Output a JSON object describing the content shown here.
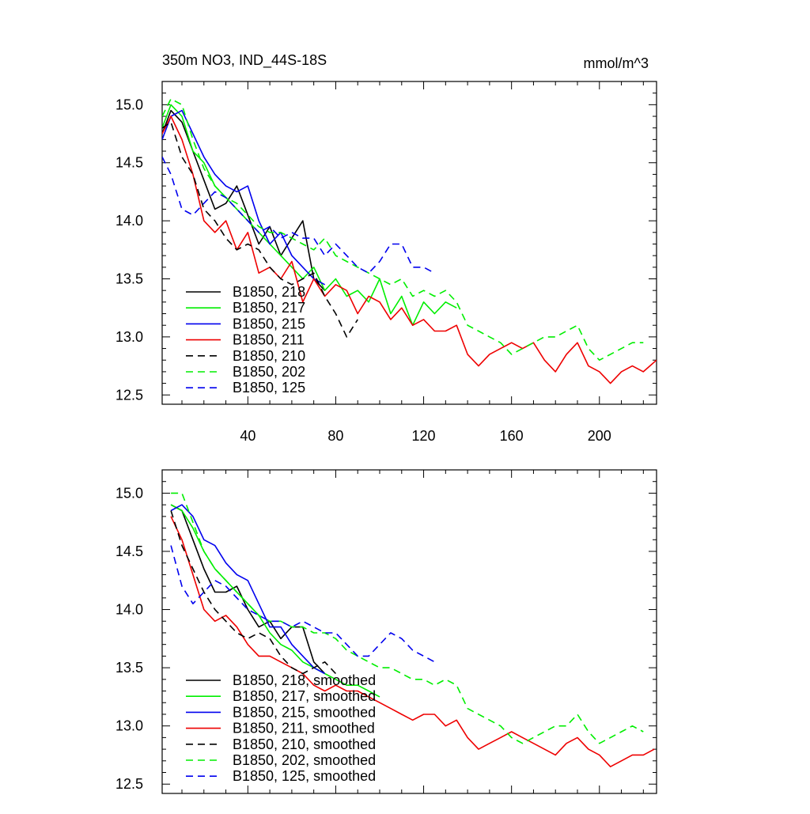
{
  "chart_data": [
    {
      "type": "line",
      "title": "350m NO3, IND_44S-18S",
      "units": "mmol/m^3",
      "xlabel": "",
      "ylabel": "",
      "xlim": [
        1,
        226
      ],
      "ylim": [
        12.42,
        15.2
      ],
      "x_ticks": [
        40,
        80,
        120,
        160,
        200
      ],
      "x_tick_labels": [
        "40",
        "80",
        "120",
        "160",
        "200"
      ],
      "y_ticks": [
        12.5,
        13.0,
        13.5,
        14.0,
        14.5,
        15.0
      ],
      "y_tick_labels": [
        "12.5",
        "13.0",
        "13.5",
        "14.0",
        "14.5",
        "15.0"
      ],
      "grid": false,
      "legend_position": "bottom-left, inside plot",
      "series": [
        {
          "name": "B1850, 218",
          "color": "#000000",
          "dash": "solid",
          "x": [
            1,
            5,
            10,
            15,
            20,
            25,
            30,
            35,
            40,
            45,
            50,
            55,
            60,
            65,
            70,
            75
          ],
          "y": [
            14.75,
            14.95,
            14.85,
            14.6,
            14.35,
            14.1,
            14.15,
            14.3,
            14.05,
            13.8,
            13.95,
            13.7,
            13.85,
            14.0,
            13.5,
            13.4
          ]
        },
        {
          "name": "B1850, 217",
          "color": "#00ee00",
          "dash": "solid",
          "x": [
            1,
            5,
            10,
            15,
            20,
            25,
            30,
            35,
            40,
            45,
            50,
            55,
            60,
            65,
            70,
            75,
            80,
            85,
            90,
            95,
            100,
            105,
            110,
            115,
            120,
            125,
            130,
            135
          ],
          "y": [
            14.8,
            15.0,
            14.9,
            14.6,
            14.5,
            14.3,
            14.2,
            14.1,
            14.0,
            13.9,
            13.8,
            13.7,
            13.6,
            13.5,
            13.6,
            13.4,
            13.5,
            13.35,
            13.4,
            13.3,
            13.5,
            13.2,
            13.35,
            13.1,
            13.3,
            13.2,
            13.3,
            13.25
          ]
        },
        {
          "name": "B1850, 215",
          "color": "#0000ee",
          "dash": "solid",
          "x": [
            1,
            5,
            10,
            15,
            20,
            25,
            30,
            35,
            40,
            45,
            50,
            55,
            60,
            65,
            70,
            75
          ],
          "y": [
            14.7,
            14.9,
            14.95,
            14.75,
            14.55,
            14.4,
            14.3,
            14.25,
            14.3,
            14.0,
            13.8,
            13.9,
            13.7,
            13.6,
            13.5,
            13.45
          ]
        },
        {
          "name": "B1850, 211",
          "color": "#ee0000",
          "dash": "solid",
          "x": [
            1,
            5,
            10,
            15,
            20,
            25,
            30,
            35,
            40,
            45,
            50,
            55,
            60,
            65,
            70,
            75,
            80,
            85,
            90,
            95,
            100,
            105,
            110,
            115,
            120,
            125,
            130,
            135,
            140,
            145,
            150,
            155,
            160,
            165,
            170,
            175,
            180,
            185,
            190,
            195,
            200,
            205,
            210,
            215,
            220,
            226
          ],
          "y": [
            14.75,
            14.9,
            14.7,
            14.4,
            14.0,
            13.9,
            14.0,
            13.75,
            13.9,
            13.55,
            13.6,
            13.5,
            13.65,
            13.3,
            13.5,
            13.35,
            13.45,
            13.4,
            13.2,
            13.35,
            13.3,
            13.15,
            13.25,
            13.1,
            13.15,
            13.05,
            13.05,
            13.1,
            12.85,
            12.75,
            12.85,
            12.9,
            12.95,
            12.9,
            12.95,
            12.8,
            12.7,
            12.85,
            12.95,
            12.75,
            12.7,
            12.6,
            12.7,
            12.75,
            12.7,
            12.8
          ]
        },
        {
          "name": "B1850, 210",
          "color": "#000000",
          "dash": "dashed",
          "x": [
            1,
            5,
            10,
            15,
            20,
            25,
            30,
            35,
            40,
            45,
            50,
            55,
            60,
            65,
            70,
            75,
            80,
            85,
            90
          ],
          "y": [
            14.8,
            14.85,
            14.55,
            14.4,
            14.1,
            14.0,
            13.85,
            13.75,
            13.8,
            13.75,
            13.6,
            13.5,
            13.45,
            13.5,
            13.55,
            13.35,
            13.2,
            13.0,
            13.15
          ]
        },
        {
          "name": "B1850, 202",
          "color": "#00ee00",
          "dash": "dashed",
          "x": [
            1,
            5,
            10,
            15,
            20,
            25,
            30,
            35,
            40,
            45,
            50,
            55,
            60,
            65,
            70,
            75,
            80,
            85,
            90,
            95,
            100,
            105,
            110,
            115,
            120,
            125,
            130,
            135,
            140,
            145,
            150,
            155,
            160,
            165,
            170,
            175,
            180,
            185,
            190,
            195,
            200,
            205,
            210,
            215,
            220
          ],
          "y": [
            14.9,
            15.05,
            15.0,
            14.7,
            14.45,
            14.3,
            14.2,
            14.15,
            14.05,
            13.95,
            13.9,
            13.9,
            13.85,
            13.8,
            13.75,
            13.85,
            13.7,
            13.65,
            13.6,
            13.55,
            13.5,
            13.45,
            13.5,
            13.35,
            13.4,
            13.35,
            13.4,
            13.3,
            13.1,
            13.05,
            13.0,
            12.95,
            12.85,
            12.9,
            12.95,
            13.0,
            13.0,
            13.05,
            13.1,
            12.9,
            12.8,
            12.85,
            12.9,
            12.95,
            12.95
          ]
        },
        {
          "name": "B1850, 125",
          "color": "#0000ee",
          "dash": "dashed",
          "x": [
            1,
            5,
            10,
            15,
            20,
            25,
            30,
            35,
            40,
            45,
            50,
            55,
            60,
            65,
            70,
            75,
            80,
            85,
            90,
            95,
            100,
            105,
            110,
            115,
            120,
            125
          ],
          "y": [
            14.55,
            14.4,
            14.1,
            14.05,
            14.15,
            14.25,
            14.2,
            14.1,
            14.0,
            13.9,
            13.95,
            13.85,
            13.9,
            13.85,
            13.85,
            13.7,
            13.8,
            13.7,
            13.6,
            13.55,
            13.65,
            13.8,
            13.8,
            13.6,
            13.6,
            13.55
          ]
        }
      ]
    },
    {
      "type": "line",
      "title": "",
      "units": "",
      "xlabel": "",
      "ylabel": "",
      "xlim": [
        1,
        226
      ],
      "ylim": [
        12.42,
        15.2
      ],
      "x_ticks": [
        40,
        80,
        120,
        160,
        200
      ],
      "x_tick_labels": [],
      "y_ticks": [
        12.5,
        13.0,
        13.5,
        14.0,
        14.5,
        15.0
      ],
      "y_tick_labels": [
        "12.5",
        "13.0",
        "13.5",
        "14.0",
        "14.5",
        "15.0"
      ],
      "grid": false,
      "legend_position": "bottom-left, inside plot",
      "series": [
        {
          "name": "B1850, 218, smoothed",
          "color": "#000000",
          "dash": "solid",
          "x": [
            5,
            10,
            15,
            20,
            25,
            30,
            35,
            40,
            45,
            50,
            55,
            60,
            65,
            70,
            75
          ],
          "y": [
            14.9,
            14.85,
            14.6,
            14.35,
            14.15,
            14.15,
            14.2,
            14.0,
            13.85,
            13.9,
            13.75,
            13.85,
            13.85,
            13.55,
            13.45
          ]
        },
        {
          "name": "B1850, 217, smoothed",
          "color": "#00ee00",
          "dash": "solid",
          "x": [
            5,
            10,
            15,
            20,
            25,
            30,
            35,
            40,
            45,
            50,
            55,
            60,
            65,
            70,
            75,
            80,
            85,
            90,
            95,
            100
          ],
          "y": [
            14.9,
            14.85,
            14.7,
            14.5,
            14.35,
            14.25,
            14.15,
            14.05,
            13.95,
            13.8,
            13.7,
            13.65,
            13.55,
            13.5,
            13.45,
            13.4,
            13.35,
            13.35,
            13.3,
            13.25
          ]
        },
        {
          "name": "B1850, 215, smoothed",
          "color": "#0000ee",
          "dash": "solid",
          "x": [
            5,
            10,
            15,
            20,
            25,
            30,
            35,
            40,
            45,
            50,
            55,
            60,
            65,
            70,
            75
          ],
          "y": [
            14.85,
            14.9,
            14.8,
            14.6,
            14.55,
            14.4,
            14.3,
            14.25,
            14.05,
            13.85,
            13.85,
            13.7,
            13.6,
            13.5,
            13.45
          ]
        },
        {
          "name": "B1850, 211, smoothed",
          "color": "#ee0000",
          "dash": "solid",
          "x": [
            5,
            10,
            15,
            20,
            25,
            30,
            35,
            40,
            45,
            50,
            55,
            60,
            65,
            70,
            75,
            80,
            85,
            90,
            95,
            100,
            105,
            110,
            115,
            120,
            125,
            130,
            135,
            140,
            145,
            150,
            155,
            160,
            165,
            170,
            175,
            180,
            185,
            190,
            195,
            200,
            205,
            210,
            215,
            220,
            225
          ],
          "y": [
            14.8,
            14.6,
            14.3,
            14.0,
            13.9,
            13.95,
            13.85,
            13.7,
            13.6,
            13.6,
            13.55,
            13.5,
            13.45,
            13.35,
            13.3,
            13.35,
            13.3,
            13.3,
            13.25,
            13.2,
            13.15,
            13.1,
            13.05,
            13.1,
            13.1,
            13.0,
            13.05,
            12.9,
            12.8,
            12.85,
            12.9,
            12.95,
            12.9,
            12.85,
            12.8,
            12.75,
            12.85,
            12.9,
            12.8,
            12.75,
            12.65,
            12.7,
            12.75,
            12.75,
            12.8
          ]
        },
        {
          "name": "B1850, 210, smoothed",
          "color": "#000000",
          "dash": "dashed",
          "x": [
            5,
            10,
            15,
            20,
            25,
            30,
            35,
            40,
            45,
            50,
            55,
            60,
            65,
            70,
            75,
            80
          ],
          "y": [
            14.85,
            14.55,
            14.35,
            14.15,
            14.0,
            13.9,
            13.8,
            13.75,
            13.8,
            13.75,
            13.6,
            13.5,
            13.45,
            13.5,
            13.55,
            13.45
          ]
        },
        {
          "name": "B1850, 202, smoothed",
          "color": "#00ee00",
          "dash": "dashed",
          "x": [
            5,
            10,
            15,
            20,
            25,
            30,
            35,
            40,
            45,
            50,
            55,
            60,
            65,
            70,
            75,
            80,
            85,
            90,
            95,
            100,
            105,
            110,
            115,
            120,
            125,
            130,
            135,
            140,
            145,
            150,
            155,
            160,
            165,
            170,
            175,
            180,
            185,
            190,
            195,
            200,
            205,
            210,
            215,
            220
          ],
          "y": [
            15.0,
            15.0,
            14.75,
            14.5,
            14.35,
            14.25,
            14.15,
            14.05,
            13.95,
            13.9,
            13.9,
            13.85,
            13.85,
            13.8,
            13.8,
            13.75,
            13.65,
            13.6,
            13.55,
            13.5,
            13.5,
            13.45,
            13.4,
            13.4,
            13.35,
            13.4,
            13.35,
            13.15,
            13.1,
            13.05,
            13.0,
            12.9,
            12.85,
            12.9,
            12.95,
            13.0,
            13.0,
            13.1,
            12.95,
            12.85,
            12.9,
            12.95,
            13.0,
            12.95
          ]
        },
        {
          "name": "B1850, 125, smoothed",
          "color": "#0000ee",
          "dash": "dashed",
          "x": [
            5,
            10,
            15,
            20,
            25,
            30,
            35,
            40,
            45,
            50,
            55,
            60,
            65,
            70,
            75,
            80,
            85,
            90,
            95,
            100,
            105,
            110,
            115,
            120,
            125
          ],
          "y": [
            14.55,
            14.2,
            14.05,
            14.15,
            14.25,
            14.2,
            14.1,
            14.0,
            13.95,
            13.9,
            13.9,
            13.85,
            13.9,
            13.85,
            13.8,
            13.8,
            13.7,
            13.6,
            13.6,
            13.7,
            13.8,
            13.75,
            13.65,
            13.6,
            13.55
          ]
        }
      ]
    }
  ]
}
